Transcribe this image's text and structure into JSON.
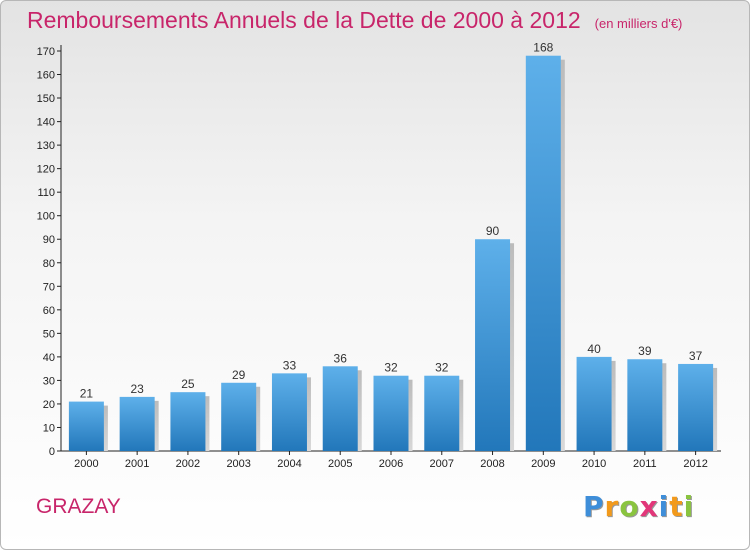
{
  "title": "Remboursements Annuels de la Dette de 2000 à 2012",
  "unit_note": "(en milliers d'€)",
  "commune": "GRAZAY",
  "logo_text": "Proxiti",
  "colors": {
    "title": "#c8256a",
    "bar_light": "#5eb0ea",
    "bar_dark": "#2277ba"
  },
  "chart_data": {
    "type": "bar",
    "title": "Remboursements Annuels de la Dette de 2000 à 2012",
    "categories": [
      "2000",
      "2001",
      "2002",
      "2003",
      "2004",
      "2005",
      "2006",
      "2007",
      "2008",
      "2009",
      "2010",
      "2011",
      "2012"
    ],
    "values": [
      21,
      23,
      25,
      29,
      33,
      36,
      32,
      32,
      90,
      168,
      40,
      39,
      37
    ],
    "ylim": [
      0,
      170
    ],
    "ytick_step": 10,
    "grid": false,
    "legend": "none"
  }
}
